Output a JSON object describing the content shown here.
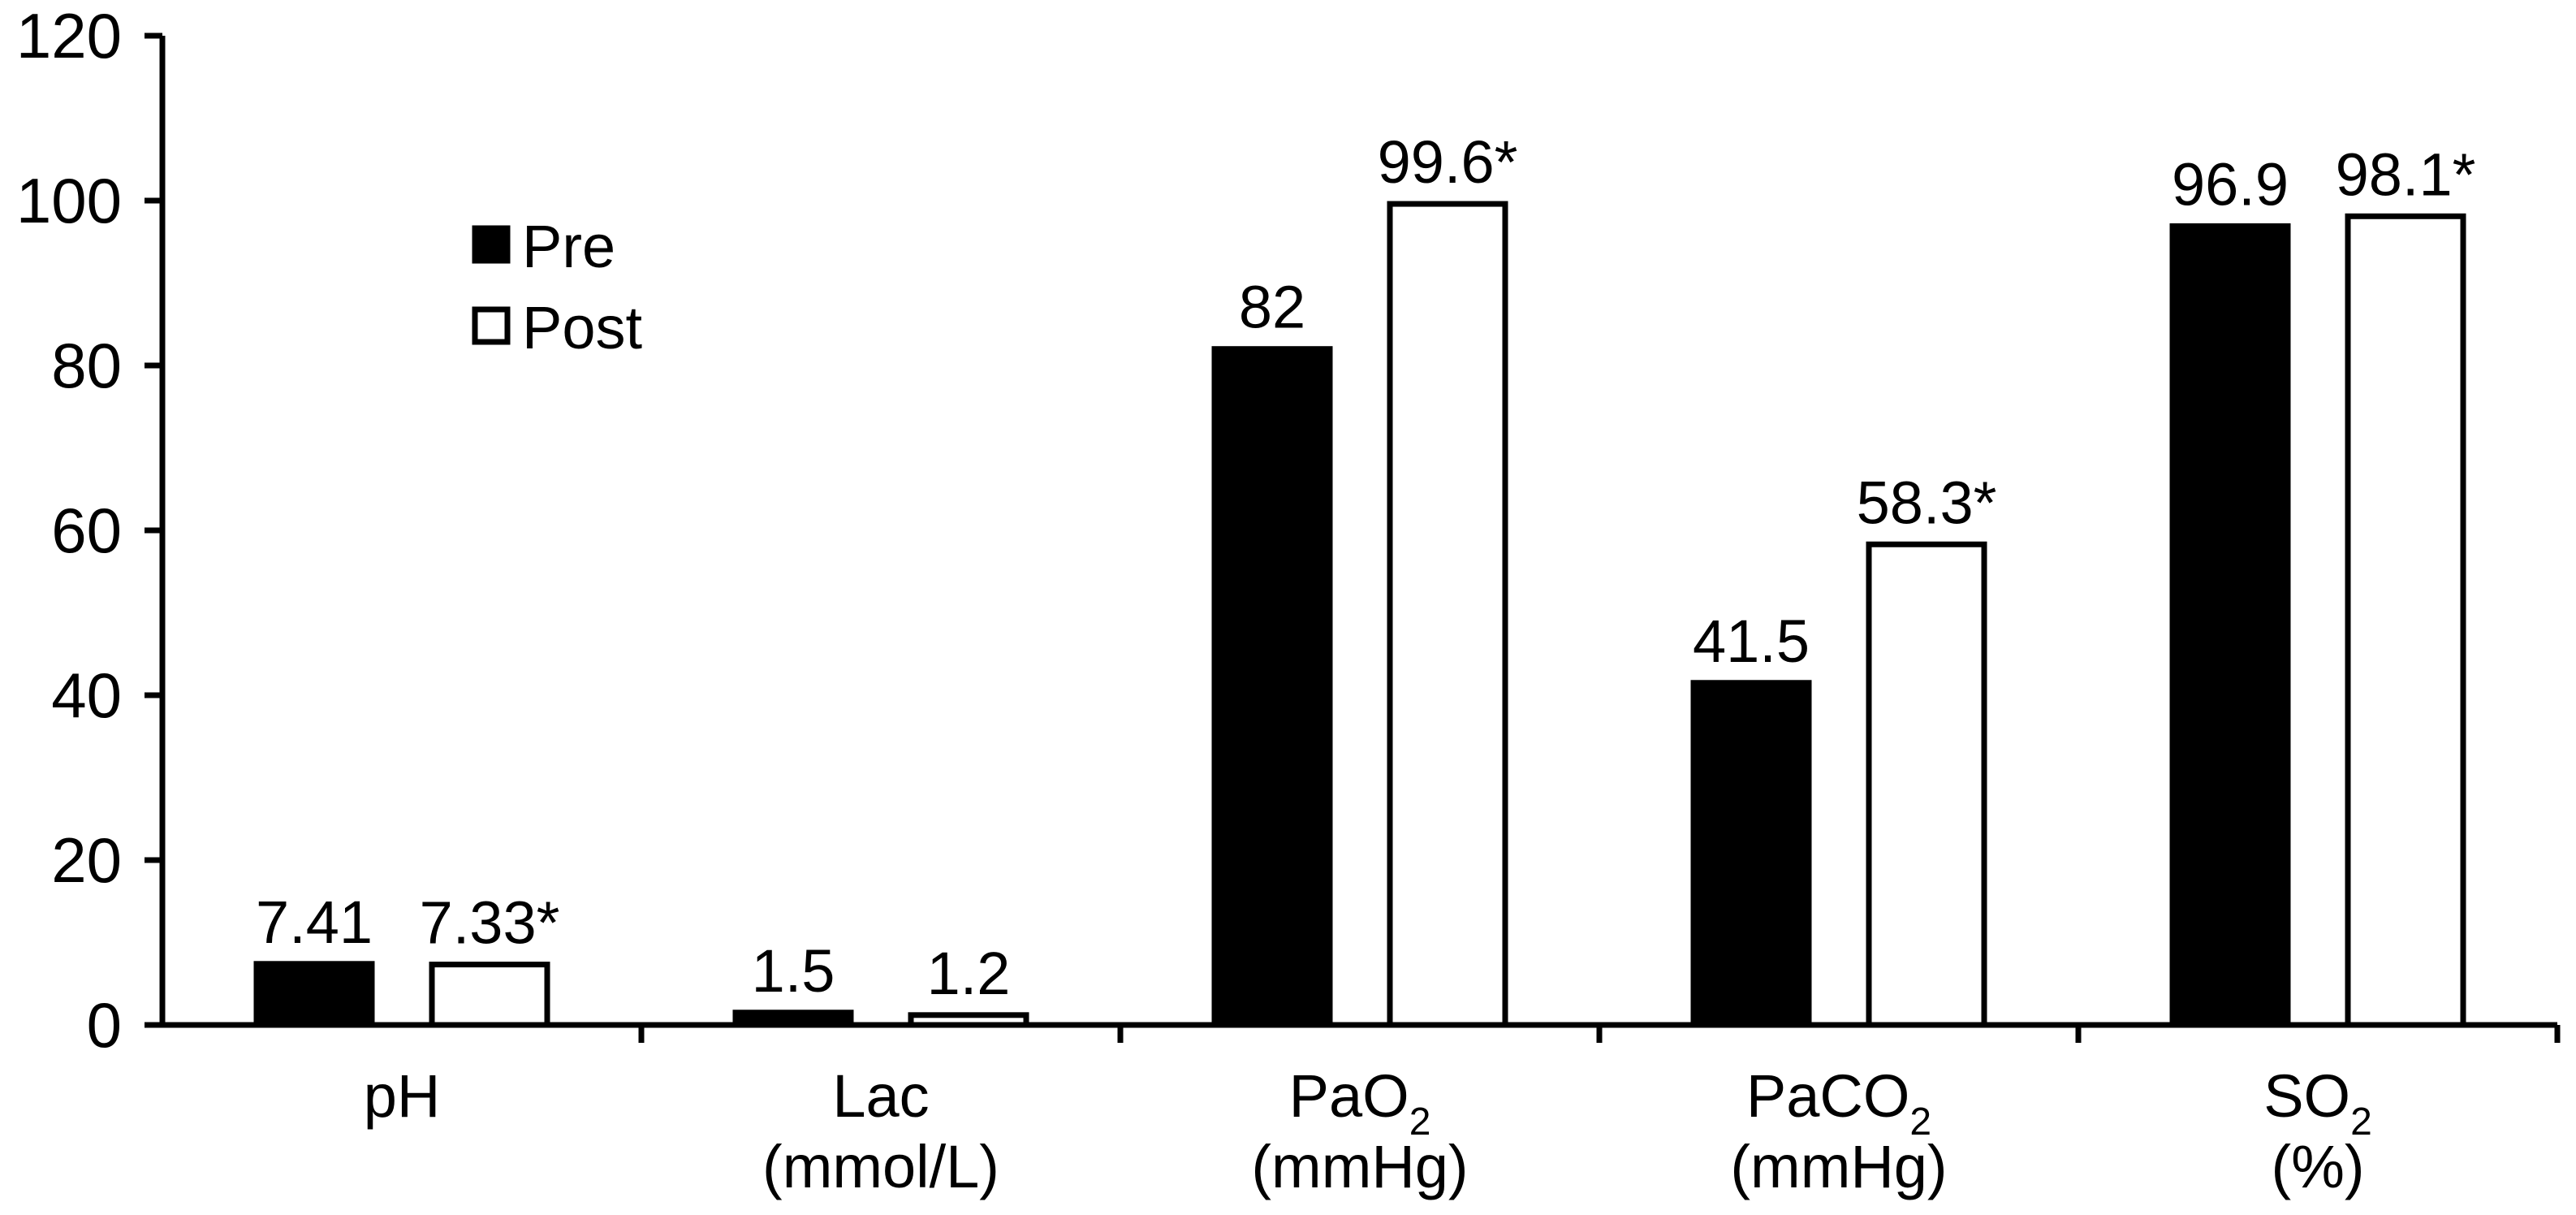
{
  "chart_data": {
    "type": "bar",
    "title": "",
    "xlabel": "",
    "ylabel": "",
    "ylim": [
      0,
      120
    ],
    "yticks": [
      0,
      20,
      40,
      60,
      80,
      100,
      120
    ],
    "grid": false,
    "legend_position": "top-left",
    "categories": [
      {
        "line1": "pH",
        "line2": ""
      },
      {
        "line1": "Lac",
        "line2": "(mmol/L)"
      },
      {
        "line1": "PaO",
        "sub": "2",
        "line2": "(mmHg)"
      },
      {
        "line1": "PaCO",
        "sub": "2",
        "line2": "(mmHg)"
      },
      {
        "line1": "SO",
        "sub": "2",
        "line2": "(%)"
      }
    ],
    "series": [
      {
        "name": "Pre",
        "fill": "#000000",
        "values": [
          7.41,
          1.5,
          82,
          41.5,
          96.9
        ],
        "labels": [
          "7.41",
          "1.5",
          "82",
          "41.5",
          "96.9"
        ]
      },
      {
        "name": "Post",
        "fill": "#ffffff",
        "values": [
          7.33,
          1.2,
          99.6,
          58.3,
          98.1
        ],
        "labels": [
          "7.33*",
          "1.2",
          "99.6*",
          "58.3*",
          "98.1*"
        ]
      }
    ]
  }
}
